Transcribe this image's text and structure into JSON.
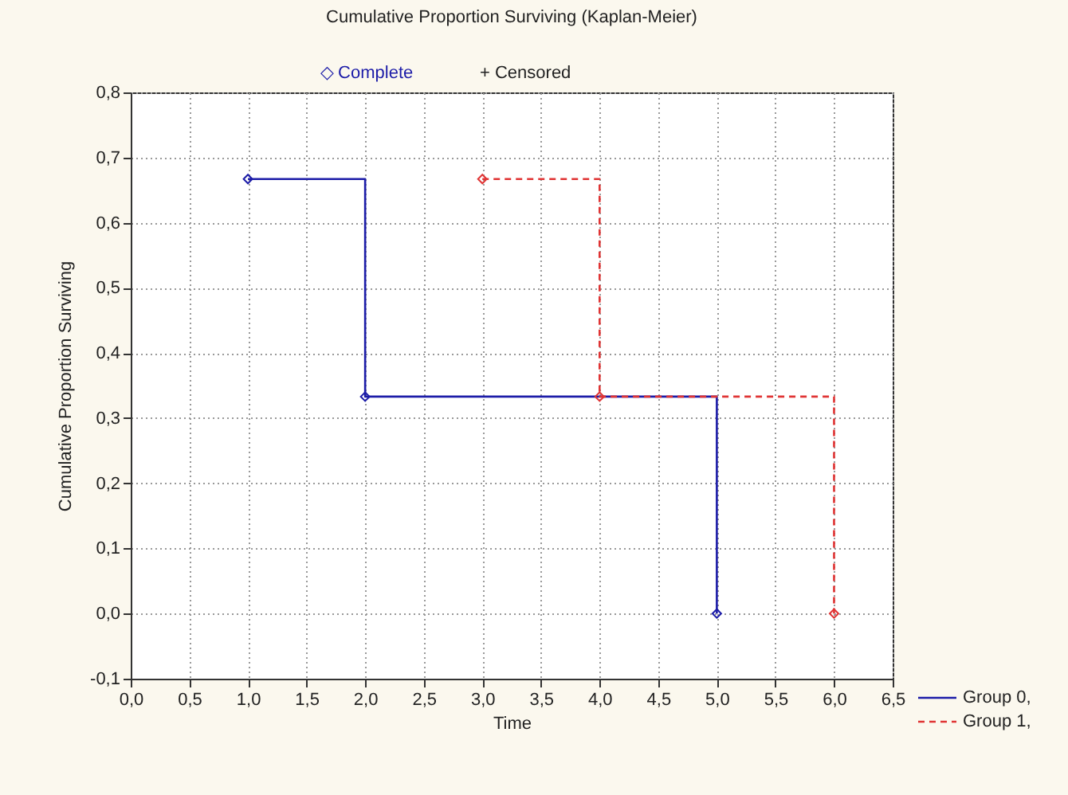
{
  "chart_data": {
    "type": "step",
    "title": "Cumulative Proportion Surviving (Kaplan-Meier)",
    "xlabel": "Time",
    "ylabel": "Cumulative Proportion Surviving",
    "annotations": [
      "◇ Complete",
      "+ Censored"
    ],
    "series": [
      {
        "name": "Group 0,",
        "color": "#1c1ca8",
        "x": [
          1,
          2,
          5
        ],
        "values": [
          0.667,
          0.333,
          0
        ],
        "line_style": "solid"
      },
      {
        "name": "Group 1,",
        "color": "#e03434",
        "x": [
          3,
          4,
          6
        ],
        "values": [
          0.667,
          0.333,
          0
        ],
        "line_style": "dashed"
      }
    ],
    "xlim": [
      0,
      6.5
    ],
    "ylim": [
      -0.1,
      0.8
    ],
    "xticks": [
      {
        "value": 0,
        "label": "0,0"
      },
      {
        "value": 0.5,
        "label": "0,5"
      },
      {
        "value": 1,
        "label": "1,0"
      },
      {
        "value": 1.5,
        "label": "1,5"
      },
      {
        "value": 2,
        "label": "2,0"
      },
      {
        "value": 2.5,
        "label": "2,5"
      },
      {
        "value": 3,
        "label": "3,0"
      },
      {
        "value": 3.5,
        "label": "3,5"
      },
      {
        "value": 4,
        "label": "4,0"
      },
      {
        "value": 4.5,
        "label": "4,5"
      },
      {
        "value": 5,
        "label": "5,0"
      },
      {
        "value": 5.5,
        "label": "5,5"
      },
      {
        "value": 6,
        "label": "6,0"
      },
      {
        "value": 6.5,
        "label": "6,5"
      }
    ],
    "yticks": [
      {
        "value": -0.1,
        "label": "-0,1"
      },
      {
        "value": 0,
        "label": "0,0"
      },
      {
        "value": 0.1,
        "label": "0,1"
      },
      {
        "value": 0.2,
        "label": "0,2"
      },
      {
        "value": 0.3,
        "label": "0,3"
      },
      {
        "value": 0.4,
        "label": "0,4"
      },
      {
        "value": 0.5,
        "label": "0,5"
      },
      {
        "value": 0.6,
        "label": "0,6"
      },
      {
        "value": 0.7,
        "label": "0,7"
      },
      {
        "value": 0.8,
        "label": "0,8"
      }
    ],
    "grid": true,
    "legend": "bottom right",
    "marker": "diamond"
  }
}
